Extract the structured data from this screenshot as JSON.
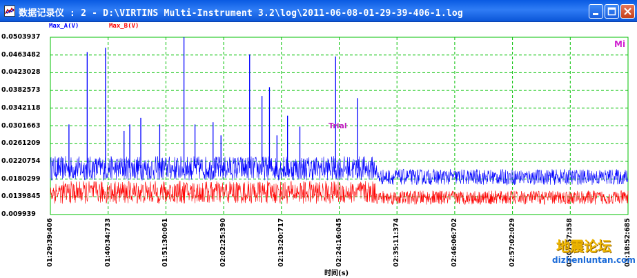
{
  "window": {
    "title": "数据记录仪 : 2 - D:\\VIRTINS Multi-Instrument 3.2\\log\\2011-06-08-01-29-39-406-1.log",
    "minimize_icon": "minimize-icon",
    "maximize_icon": "maximize-icon",
    "close_icon": "close-icon",
    "app_icon": "chart-icon"
  },
  "colors": {
    "series_a": "#0000ff",
    "series_b": "#ff0000",
    "grid": "#00c000",
    "title_bar": "#0a5be2",
    "annotation": "#c020c0"
  },
  "chart_data": {
    "type": "line",
    "xlabel": "时间(s)",
    "ylabel": "",
    "ylim": [
      0.009939,
      0.0503937
    ],
    "y_ticks": [
      "0.0503937",
      "0.0463482",
      "0.0423028",
      "0.0382573",
      "0.0342118",
      "0.0301663",
      "0.0261209",
      "0.0220754",
      "0.0180299",
      "0.0139845",
      "0.009939"
    ],
    "x_ticks": [
      "01:29:39:406",
      "01:40:34:733",
      "01:51:30:061",
      "02:02:25:390",
      "02:13:20:717",
      "02:24:16:045",
      "02:35:11:374",
      "02:46:06:702",
      "02:57:02:029",
      "03:07:57:358",
      "03:18:52:685"
    ],
    "grid": true,
    "series": [
      {
        "name": "Max_A(V)",
        "baseline_first_part": 0.0205,
        "baseline_second_part": 0.0185,
        "spikes": [
          {
            "time": "01:33:10",
            "value": 0.0305
          },
          {
            "time": "01:36:37",
            "value": 0.047
          },
          {
            "time": "01:40:05",
            "value": 0.048
          },
          {
            "time": "01:43:35",
            "value": 0.029
          },
          {
            "time": "01:44:40",
            "value": 0.0305
          },
          {
            "time": "01:46:45",
            "value": 0.032
          },
          {
            "time": "01:50:20",
            "value": 0.0305
          },
          {
            "time": "01:54:55",
            "value": 0.0505
          },
          {
            "time": "01:57:00",
            "value": 0.0305
          },
          {
            "time": "02:00:25",
            "value": 0.031
          },
          {
            "time": "02:01:55",
            "value": 0.028
          },
          {
            "time": "02:07:20",
            "value": 0.0465
          },
          {
            "time": "02:09:40",
            "value": 0.037
          },
          {
            "time": "02:11:05",
            "value": 0.039
          },
          {
            "time": "02:12:30",
            "value": 0.028
          },
          {
            "time": "02:14:30",
            "value": 0.0325
          },
          {
            "time": "02:16:50",
            "value": 0.03
          },
          {
            "time": "02:23:35",
            "value": 0.046
          },
          {
            "time": "02:27:45",
            "value": 0.0365
          }
        ]
      },
      {
        "name": "Max_B(V)",
        "baseline_first_part": 0.015,
        "baseline_second_part": 0.0138
      }
    ],
    "annotations": [
      "Trial",
      "Mi"
    ]
  },
  "watermark": {
    "cn": "地震论坛",
    "url": "dizhenluntan.com"
  }
}
